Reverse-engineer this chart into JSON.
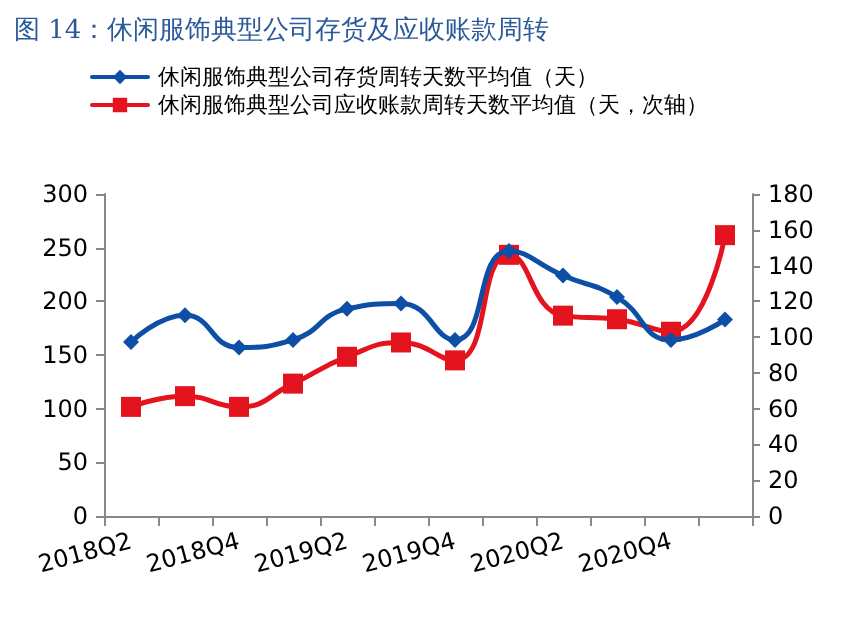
{
  "chart_data": {
    "type": "line",
    "title": "图 14：休闲服饰典型公司存货及应收账款周转",
    "categories": [
      "2018Q2",
      null,
      "2018Q4",
      null,
      "2019Q2",
      null,
      "2019Q4",
      null,
      "2020Q2",
      null,
      "2020Q4",
      null
    ],
    "series": [
      {
        "name": "休闲服饰典型公司存货周转天数平均值（天）",
        "color": "#0d4ea6",
        "marker": "diamond",
        "values": [
          162,
          187,
          157,
          164,
          193,
          198,
          164,
          247,
          224,
          204,
          164,
          183
        ]
      },
      {
        "name": "休闲服饰典型公司应收账款周转天数平均值（天，次轴）",
        "color": "#e4141e",
        "marker": "square",
        "axis": "y2",
        "values": [
          61,
          67,
          61,
          74,
          89,
          97,
          87,
          146,
          112,
          110,
          103,
          157
        ]
      }
    ],
    "ylim": [
      0,
      300
    ],
    "yticks": [
      0,
      50,
      100,
      150,
      200,
      250,
      300
    ],
    "y2lim": [
      0,
      180
    ],
    "y2ticks": [
      0,
      20,
      40,
      60,
      80,
      100,
      120,
      140,
      160,
      180
    ],
    "grid": false,
    "legend": "top",
    "line_style": "solid"
  }
}
